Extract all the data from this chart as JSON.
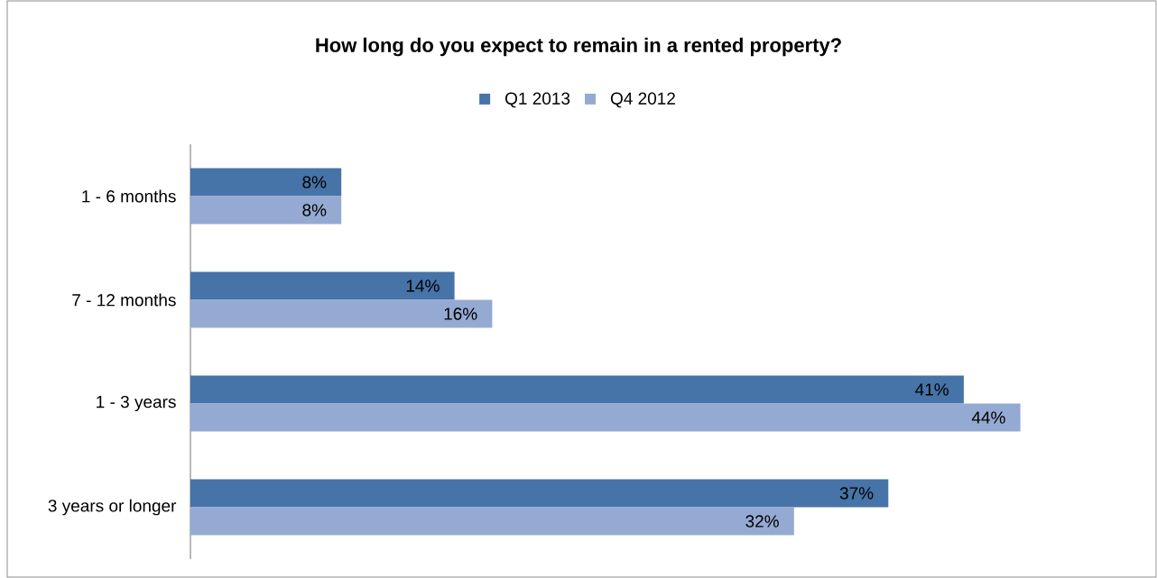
{
  "chart_data": {
    "type": "bar",
    "orientation": "horizontal",
    "title": "How long do you expect to remain in a rented property?",
    "categories": [
      "1 - 6 months",
      "7 - 12 months",
      "1 - 3 years",
      "3 years or longer"
    ],
    "series": [
      {
        "name": "Q1 2013",
        "color": "#4673a8",
        "values": [
          8,
          14,
          41,
          37
        ],
        "value_labels": [
          "8%",
          "14%",
          "41%",
          "37%"
        ]
      },
      {
        "name": "Q4 2012",
        "color": "#95aad2",
        "values": [
          8,
          16,
          44,
          32
        ],
        "value_labels": [
          "8%",
          "16%",
          "44%",
          "32%"
        ]
      }
    ],
    "legend": "top",
    "tick_labels": "y",
    "grid": false
  }
}
